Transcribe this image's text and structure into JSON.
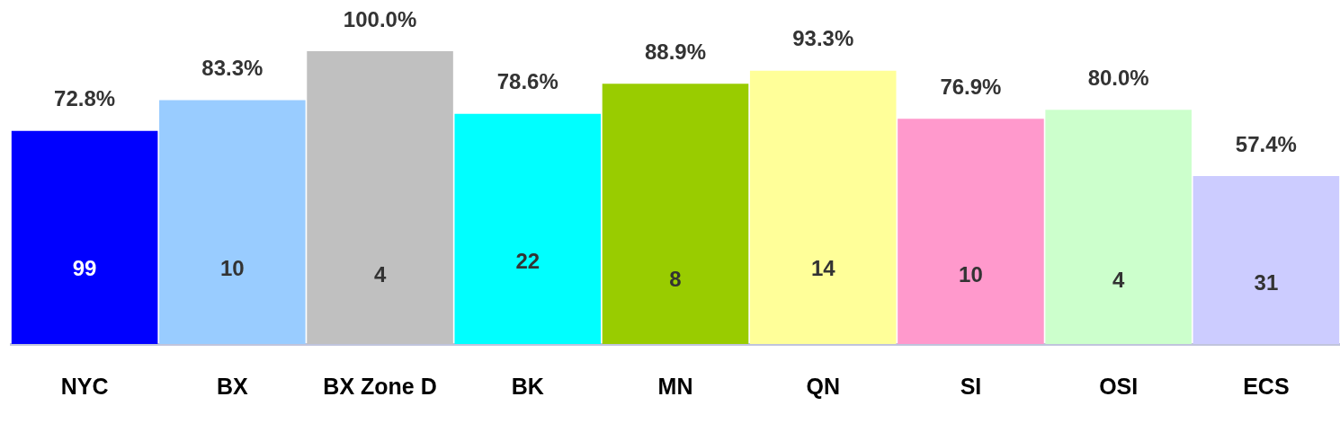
{
  "chart_data": {
    "type": "bar",
    "categories": [
      "NYC",
      "BX",
      "BX Zone D",
      "BK",
      "MN",
      "QN",
      "SI",
      "OSI",
      "ECS"
    ],
    "values": [
      72.8,
      83.3,
      100.0,
      78.6,
      88.9,
      93.3,
      76.9,
      80.0,
      57.4
    ],
    "value_labels": [
      "72.8%",
      "83.3%",
      "100.0%",
      "78.6%",
      "88.9%",
      "93.3%",
      "76.9%",
      "80.0%",
      "57.4%"
    ],
    "colors": [
      "#0000ff",
      "#99ccff",
      "#c0c0c0",
      "#00ffff",
      "#99cc00",
      "#ffff99",
      "#ff99cc",
      "#ccffcc",
      "#ccccff"
    ],
    "tick_labels": "x",
    "grid": false,
    "legend": false,
    "annotations": [
      "99",
      "10",
      "4",
      "22",
      "8",
      "14",
      "10",
      "4",
      "31"
    ]
  }
}
